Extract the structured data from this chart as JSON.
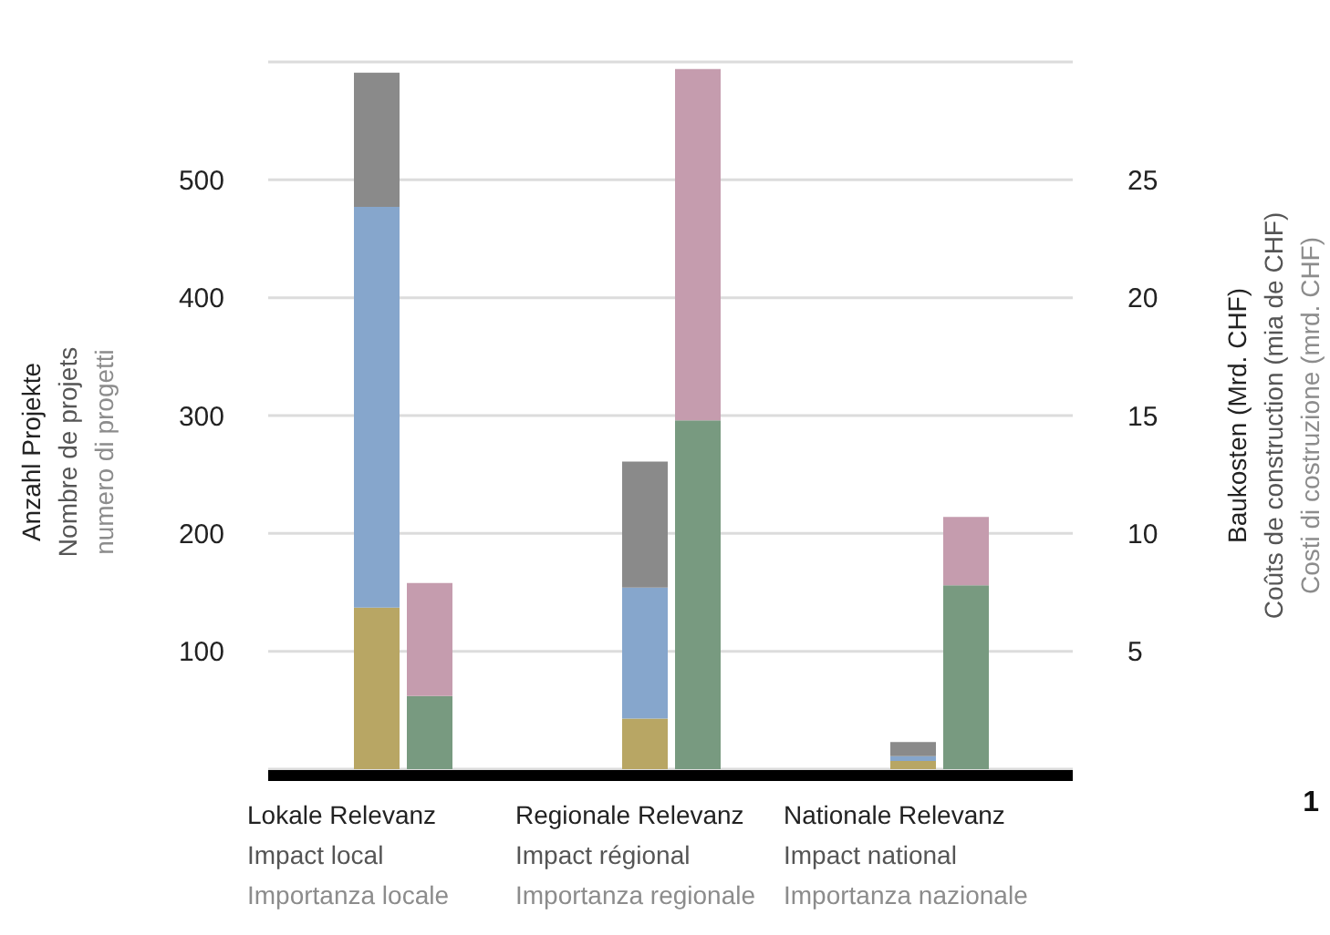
{
  "chart_data": {
    "type": "bar",
    "stacked": true,
    "categories": [
      "Lokale Relevanz\nImpact local\nImportanza locale",
      "Regionale Relevanz\nImpact régional\nImportanza regionale",
      "Nationale Relevanz\nImpact national\nImportanza nazionale"
    ],
    "series": [
      {
        "color": "#b8a664",
        "values": [
          137,
          43,
          7
        ]
      },
      {
        "color": "#86a6cc",
        "values": [
          340,
          111,
          4
        ]
      },
      {
        "color": "#8a8a8a",
        "values": [
          114,
          107,
          12
        ]
      },
      {
        "color": "#789a80",
        "values": [
          3.1,
          14.8,
          7.8
        ],
        "axis": "y2"
      },
      {
        "color": "#c59cae",
        "values": [
          4.8,
          14.9,
          2.9
        ],
        "axis": "y2"
      }
    ],
    "ylabel": "Anzahl Projekte\nNombre de projets\nnumero di progetti",
    "y2label": "Baukosten (Mrd. CHF)\nCoûts de construction (mia de CHF)\nCosti di costruzione (mrd. CHF)",
    "ylim": [
      0,
      600
    ],
    "yticks": [
      100,
      200,
      300,
      400,
      500
    ],
    "y2lim": [
      0,
      30
    ],
    "y2ticks": [
      5,
      10,
      15,
      20,
      25
    ],
    "grid": "y",
    "annotations": [
      "1"
    ]
  }
}
